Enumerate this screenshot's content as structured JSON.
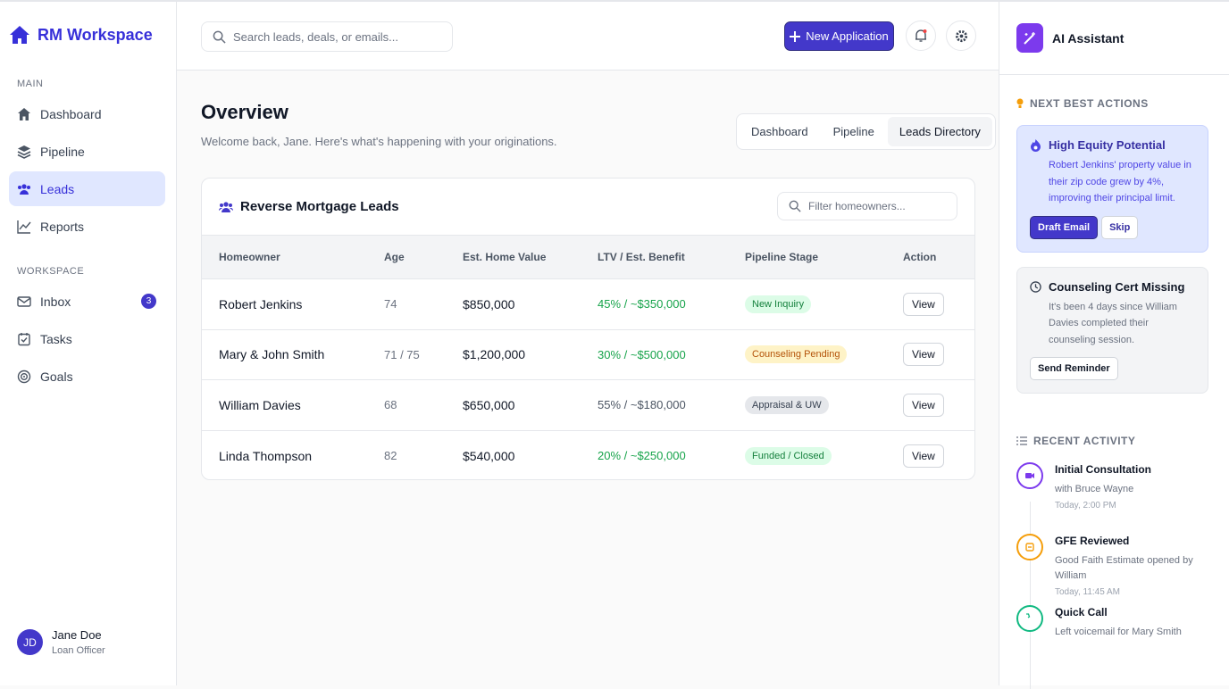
{
  "sidebar": {
    "brand": "RM Workspace",
    "sections": [
      {
        "title": "MAIN",
        "items": [
          {
            "label": "Dashboard",
            "icon": "home"
          },
          {
            "label": "Pipeline",
            "icon": "layers"
          },
          {
            "label": "Leads",
            "icon": "users",
            "active": true
          },
          {
            "label": "Reports",
            "icon": "chart"
          }
        ]
      },
      {
        "title": "WORKSPACE",
        "items": [
          {
            "label": "Inbox",
            "icon": "mail",
            "badge": 3
          },
          {
            "label": "Tasks",
            "icon": "check"
          },
          {
            "label": "Goals",
            "icon": "target"
          }
        ]
      }
    ],
    "user": {
      "initials": "JD",
      "name": "Jane Doe",
      "role": "Loan Officer"
    }
  },
  "topbar": {
    "search_placeholder": "Search leads, deals, or emails...",
    "new_button": "New Application"
  },
  "overview": {
    "title": "Overview",
    "subtitle": "Welcome back, Jane. Here's what's happening with your originations.",
    "tabs": [
      "Dashboard",
      "Pipeline",
      "Leads Directory"
    ],
    "active_tab": 2
  },
  "table": {
    "title": "Reverse Mortgage Leads",
    "filter_placeholder": "Filter homeowners...",
    "columns": [
      "Homeowner",
      "Age",
      "Est. Home Value",
      "LTV / Est. Benefit",
      "Pipeline Stage",
      "Action"
    ],
    "rows": [
      {
        "homeowner": "Robert Jenkins",
        "age": "74",
        "value": "$850,000",
        "ltv": "45% / ~$350,000",
        "ltv_tone": "green",
        "stage": "New Inquiry",
        "stage_tone": "green",
        "action": "View"
      },
      {
        "homeowner": "Mary & John Smith",
        "age": "71 / 75",
        "value": "$1,200,000",
        "ltv": "30% / ~$500,000",
        "ltv_tone": "green",
        "stage": "Counseling Pending",
        "stage_tone": "amber",
        "action": "View"
      },
      {
        "homeowner": "William Davies",
        "age": "68",
        "value": "$650,000",
        "ltv": "55% / ~$180,000",
        "ltv_tone": "gray",
        "stage": "Appraisal & UW",
        "stage_tone": "gray",
        "action": "View"
      },
      {
        "homeowner": "Linda Thompson",
        "age": "82",
        "value": "$540,000",
        "ltv": "20% / ~$250,000",
        "ltv_tone": "green",
        "stage": "Funded / Closed",
        "stage_tone": "green",
        "action": "View"
      }
    ]
  },
  "assistant": {
    "title": "AI Assistant",
    "actions_heading": "NEXT BEST ACTIONS",
    "actions": [
      {
        "title": "High Equity Potential",
        "text": "Robert Jenkins' property value in their zip code grew by 4%, improving their principal limit.",
        "tone": "indigo",
        "buttons": [
          "Draft Email",
          "Skip"
        ]
      },
      {
        "title": "Counseling Cert Missing",
        "text": "It's been 4 days since William Davies completed their counseling session.",
        "tone": "gray",
        "buttons": [
          "Send Reminder"
        ]
      }
    ],
    "activity_heading": "RECENT ACTIVITY",
    "activity": [
      {
        "title": "Initial Consultation",
        "detail": "with Bruce Wayne",
        "time": "Today, 2:00 PM",
        "color": "#7c3aed"
      },
      {
        "title": "GFE Reviewed",
        "detail": "Good Faith Estimate opened by William",
        "time": "Today, 11:45 AM",
        "color": "#f59e0b"
      },
      {
        "title": "Quick Call",
        "detail": "Left voicemail for Mary Smith",
        "color": "#10b981"
      }
    ]
  }
}
